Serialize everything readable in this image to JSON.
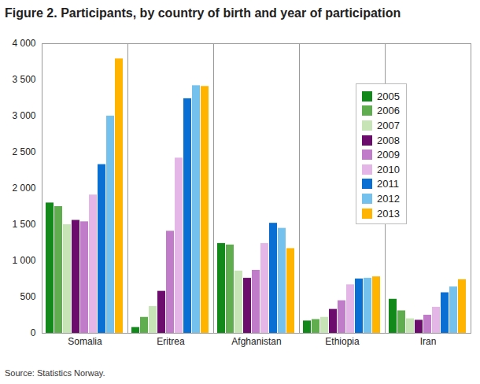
{
  "chart_data": {
    "type": "bar",
    "title": "Figure 2. Participants, by country of birth and year of participation",
    "caption": "Source: Statistics Norway.",
    "categories": [
      "Somalia",
      "Eritrea",
      "Afghanistan",
      "Ethiopia",
      "Iran"
    ],
    "series": [
      {
        "name": "2005",
        "color": "#12891a",
        "values": [
          1800,
          80,
          1240,
          170,
          470
        ]
      },
      {
        "name": "2006",
        "color": "#5fad4e",
        "values": [
          1750,
          220,
          1220,
          190,
          310
        ]
      },
      {
        "name": "2007",
        "color": "#c6e4b6",
        "values": [
          1500,
          370,
          860,
          220,
          200
        ]
      },
      {
        "name": "2008",
        "color": "#6c0d6e",
        "values": [
          1560,
          580,
          760,
          330,
          180
        ]
      },
      {
        "name": "2009",
        "color": "#c07bc9",
        "values": [
          1540,
          1410,
          870,
          450,
          250
        ]
      },
      {
        "name": "2010",
        "color": "#e4b6e8",
        "values": [
          1910,
          2420,
          1240,
          670,
          360
        ]
      },
      {
        "name": "2011",
        "color": "#0a6fd2",
        "values": [
          2330,
          3240,
          1520,
          750,
          560
        ]
      },
      {
        "name": "2012",
        "color": "#74c1ed",
        "values": [
          3000,
          3420,
          1450,
          760,
          640
        ]
      },
      {
        "name": "2013",
        "color": "#ffb400",
        "values": [
          3790,
          3410,
          1170,
          780,
          740
        ]
      }
    ],
    "ylim": [
      0,
      4000
    ],
    "yticks": [
      0,
      500,
      {
        "value": 1000,
        "label": "1 000"
      },
      {
        "value": 1500,
        "label": "1 500"
      },
      {
        "value": 2000,
        "label": "2 000"
      },
      {
        "value": 2500,
        "label": "2 500"
      },
      {
        "value": 3000,
        "label": "3 000"
      },
      {
        "value": 3500,
        "label": "3 500"
      },
      {
        "value": 4000,
        "label": "4 000"
      }
    ],
    "grid": false,
    "legend": "top-right"
  }
}
